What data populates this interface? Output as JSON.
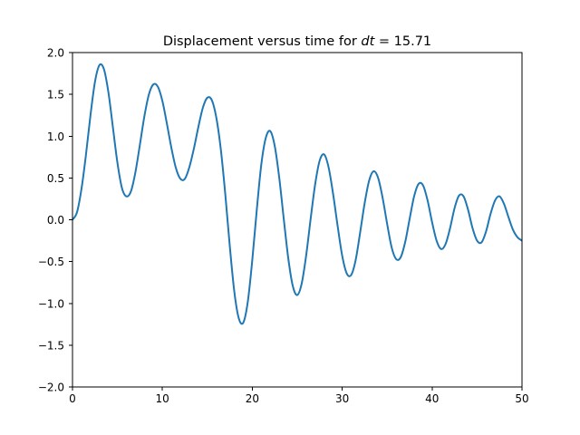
{
  "chart_data": {
    "type": "line",
    "title": {
      "prefix": "Displacement versus time for ",
      "variable": "dt",
      "suffix": " = 15.71"
    },
    "xlabel": "",
    "ylabel": "",
    "xlim": [
      0,
      50
    ],
    "ylim": [
      -2.0,
      2.0
    ],
    "x_ticks": [
      0,
      10,
      20,
      30,
      40,
      50
    ],
    "x_tick_labels": [
      "0",
      "10",
      "20",
      "30",
      "40",
      "50"
    ],
    "y_ticks": [
      -2.0,
      -1.5,
      -1.0,
      -0.5,
      0.0,
      0.5,
      1.0,
      1.5,
      2.0
    ],
    "y_tick_labels": [
      "−2.0",
      "−1.5",
      "−1.0",
      "−0.5",
      "0.0",
      "0.5",
      "1.0",
      "1.5",
      "2.0"
    ],
    "grid": false,
    "series": [
      {
        "color": "#1f77b4",
        "points": [
          [
            0.0,
            0.0
          ],
          [
            0.5,
            0.09
          ],
          [
            1.0,
            0.37
          ],
          [
            1.5,
            0.78
          ],
          [
            2.0,
            1.25
          ],
          [
            2.5,
            1.65
          ],
          [
            3.0,
            1.85
          ],
          [
            3.5,
            1.8
          ],
          [
            4.0,
            1.52
          ],
          [
            4.5,
            1.1
          ],
          [
            5.0,
            0.68
          ],
          [
            5.5,
            0.38
          ],
          [
            6.0,
            0.28
          ],
          [
            6.5,
            0.34
          ],
          [
            7.0,
            0.57
          ],
          [
            7.5,
            0.9
          ],
          [
            8.0,
            1.24
          ],
          [
            8.5,
            1.5
          ],
          [
            9.0,
            1.62
          ],
          [
            9.5,
            1.59
          ],
          [
            10.0,
            1.42
          ],
          [
            10.5,
            1.15
          ],
          [
            11.0,
            0.86
          ],
          [
            11.5,
            0.62
          ],
          [
            12.0,
            0.49
          ],
          [
            12.5,
            0.49
          ],
          [
            13.0,
            0.63
          ],
          [
            13.5,
            0.85
          ],
          [
            14.0,
            1.11
          ],
          [
            14.5,
            1.34
          ],
          [
            15.0,
            1.46
          ],
          [
            15.5,
            1.43
          ],
          [
            16.0,
            1.22
          ],
          [
            16.5,
            0.84
          ],
          [
            17.0,
            0.3
          ],
          [
            17.5,
            -0.32
          ],
          [
            18.0,
            -0.86
          ],
          [
            18.5,
            -1.18
          ],
          [
            19.0,
            -1.23
          ],
          [
            19.5,
            -0.98
          ],
          [
            20.0,
            -0.48
          ],
          [
            20.5,
            0.12
          ],
          [
            21.0,
            0.66
          ],
          [
            21.5,
            0.98
          ],
          [
            22.0,
            1.06
          ],
          [
            22.5,
            0.88
          ],
          [
            23.0,
            0.5
          ],
          [
            23.5,
            0.01
          ],
          [
            24.0,
            -0.46
          ],
          [
            24.5,
            -0.79
          ],
          [
            25.0,
            -0.9
          ],
          [
            25.5,
            -0.76
          ],
          [
            26.0,
            -0.42
          ],
          [
            26.5,
            0.02
          ],
          [
            27.0,
            0.43
          ],
          [
            27.5,
            0.71
          ],
          [
            28.0,
            0.78
          ],
          [
            28.5,
            0.62
          ],
          [
            29.0,
            0.3
          ],
          [
            29.5,
            -0.08
          ],
          [
            30.0,
            -0.43
          ],
          [
            30.5,
            -0.64
          ],
          [
            31.0,
            -0.66
          ],
          [
            31.5,
            -0.48
          ],
          [
            32.0,
            -0.15
          ],
          [
            32.5,
            0.2
          ],
          [
            33.0,
            0.47
          ],
          [
            33.5,
            0.58
          ],
          [
            34.0,
            0.5
          ],
          [
            34.5,
            0.26
          ],
          [
            35.0,
            -0.05
          ],
          [
            35.5,
            -0.33
          ],
          [
            36.0,
            -0.47
          ],
          [
            36.5,
            -0.45
          ],
          [
            37.0,
            -0.27
          ],
          [
            37.5,
            0.01
          ],
          [
            38.0,
            0.28
          ],
          [
            38.5,
            0.43
          ],
          [
            39.0,
            0.41
          ],
          [
            39.5,
            0.23
          ],
          [
            40.0,
            -0.03
          ],
          [
            40.5,
            -0.25
          ],
          [
            41.0,
            -0.35
          ],
          [
            41.5,
            -0.29
          ],
          [
            42.0,
            -0.1
          ],
          [
            42.5,
            0.14
          ],
          [
            43.0,
            0.29
          ],
          [
            43.5,
            0.28
          ],
          [
            44.0,
            0.12
          ],
          [
            44.5,
            -0.1
          ],
          [
            45.0,
            -0.25
          ],
          [
            45.5,
            -0.27
          ],
          [
            46.0,
            -0.14
          ],
          [
            46.5,
            0.07
          ],
          [
            47.0,
            0.23
          ],
          [
            47.5,
            0.28
          ],
          [
            48.0,
            0.19
          ],
          [
            48.5,
            0.03
          ],
          [
            49.0,
            -0.12
          ],
          [
            49.5,
            -0.21
          ],
          [
            50.0,
            -0.25
          ]
        ]
      }
    ]
  }
}
